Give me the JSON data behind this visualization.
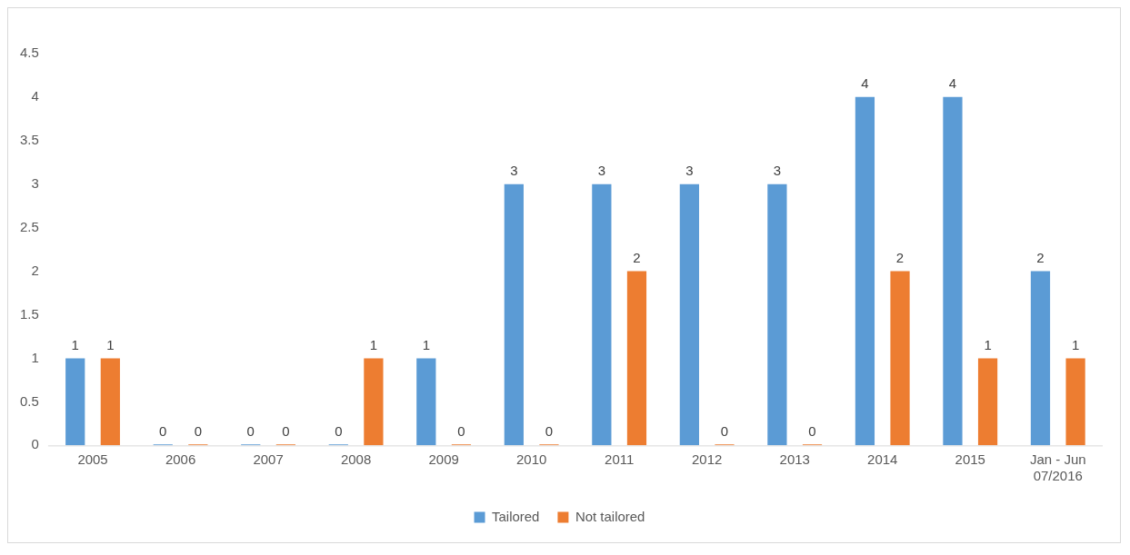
{
  "chart_data": {
    "type": "bar",
    "categories": [
      "2005",
      "2006",
      "2007",
      "2008",
      "2009",
      "2010",
      "2011",
      "2012",
      "2013",
      "2014",
      "2015",
      "Jan - Jun 07/2016"
    ],
    "series": [
      {
        "name": "Tailored",
        "color": "#5b9bd5",
        "values": [
          1,
          0,
          0,
          0,
          1,
          3,
          3,
          3,
          3,
          4,
          4,
          2
        ]
      },
      {
        "name": "Not tailored",
        "color": "#ed7d31",
        "values": [
          1,
          0,
          0,
          1,
          0,
          0,
          2,
          0,
          0,
          2,
          1,
          1
        ]
      }
    ],
    "ylim": [
      0,
      4.5
    ],
    "yticks": [
      0,
      0.5,
      1,
      1.5,
      2,
      2.5,
      3,
      3.5,
      4,
      4.5
    ],
    "grid": false,
    "legend": "bottom",
    "data_labels": true
  }
}
